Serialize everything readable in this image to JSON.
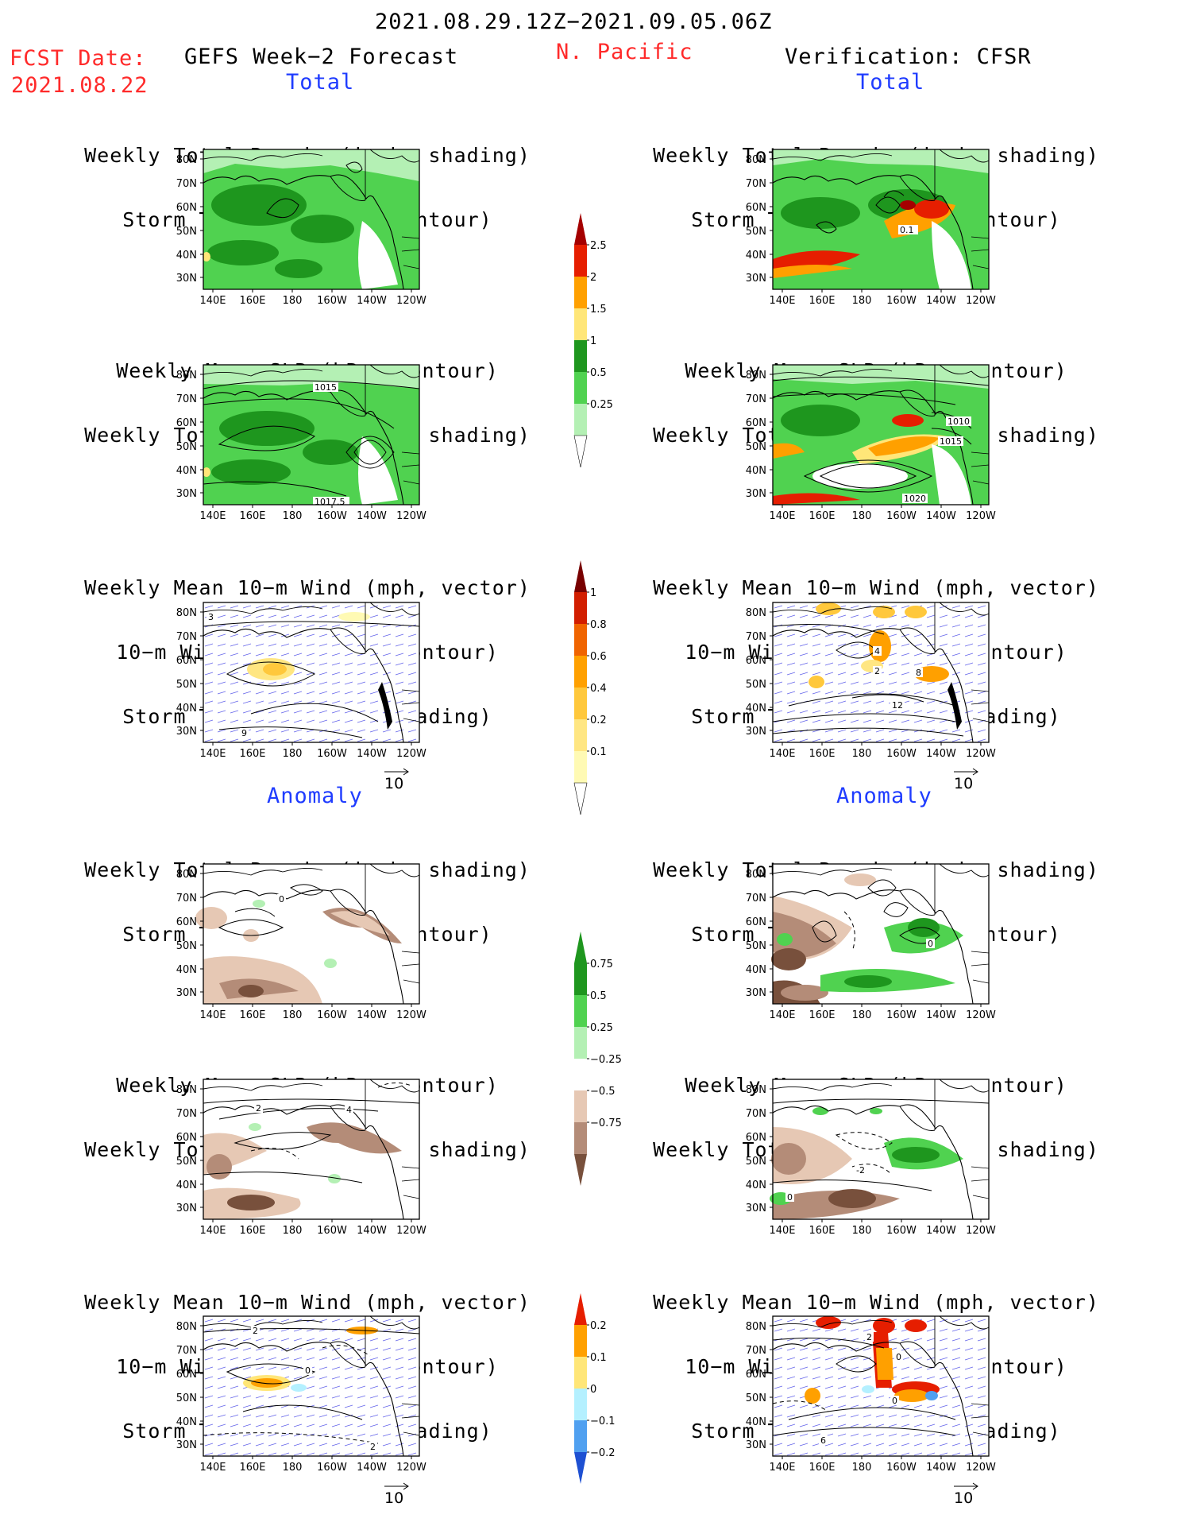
{
  "header": {
    "date_range": "2021.08.29.12Z−2021.09.05.06Z",
    "fcst_date_label": "FCST Date:",
    "fcst_date": "2021.08.22",
    "left_title": "GEFS Week−2 Forecast",
    "region": "N. Pacific",
    "right_title": "Verification: CFSR",
    "total_label": "Total",
    "anomaly_label": "Anomaly"
  },
  "titles": {
    "precip_storm": [
      "Weekly Total Precip (inch, shading)",
      "Storm Track Density (contour)"
    ],
    "slp_precip": [
      "Weekly Mean SLP (hPa, contour)",
      "Weekly Total Precip (inch, shading)"
    ],
    "wind": [
      "Weekly Mean 10−m Wind (mph, vector)",
      "10−m Wind Speed (mph, contour)",
      "Storm Track Density (shading)"
    ]
  },
  "axes": {
    "lat_ticks": [
      "80N",
      "70N",
      "60N",
      "50N",
      "40N",
      "30N"
    ],
    "lon_ticks": [
      "140E",
      "160E",
      "180",
      "160W",
      "140W",
      "120W"
    ],
    "vector_ref": "10"
  },
  "colorbars": {
    "precip_total": {
      "levels": [
        "0.25",
        "0.5",
        "1",
        "1.5",
        "2",
        "2.5"
      ],
      "colors": [
        "#b4f0b4",
        "#50d250",
        "#1e961e",
        "#ffe678",
        "#ffa000",
        "#e61e00",
        "#a50000"
      ]
    },
    "storm_total": {
      "levels": [
        "0.1",
        "0.2",
        "0.4",
        "0.6",
        "0.8",
        "1"
      ],
      "colors": [
        "#fffab4",
        "#ffe682",
        "#ffc83c",
        "#ffa000",
        "#f06400",
        "#d21e00",
        "#a00000"
      ]
    },
    "precip_anom": {
      "levels": [
        "0.75",
        "0.5",
        "0.25",
        "−0.25",
        "−0.5",
        "−0.75"
      ],
      "colors": [
        "#1e961e",
        "#50d250",
        "#b4f0b4",
        "#ffffff",
        "#e6c8b4",
        "#b48c78",
        "#78503c"
      ]
    },
    "storm_anom": {
      "levels": [
        "0.2",
        "0.1",
        "0",
        "−0.1",
        "−0.2"
      ],
      "colors": [
        "#e61e00",
        "#ffa000",
        "#ffe678",
        "#b4f0ff",
        "#50a0f0",
        "#1e50d2"
      ]
    }
  },
  "contour_labels": {
    "fcst_slp": [
      "1015",
      "1017.5"
    ],
    "verif_slp": [
      "1010",
      "1015",
      "1020"
    ],
    "verif_precip": [
      "0.1"
    ],
    "fcst_wind": [
      "3",
      "9"
    ],
    "verif_wind": [
      "4",
      "2",
      "8",
      "12"
    ],
    "fcst_anom_storm": [
      "0"
    ],
    "verif_anom_storm": [
      "0"
    ],
    "fcst_anom_slp": [
      "2",
      "4"
    ],
    "verif_anom_slp": [
      "-2",
      "0"
    ],
    "fcst_anom_wind": [
      "2",
      "0",
      "2"
    ],
    "verif_anom_wind": [
      "2",
      "0",
      "0",
      "6"
    ]
  },
  "region_colors": {
    "land": "#ffffff",
    "ocean_low": "#b4f0b4"
  }
}
